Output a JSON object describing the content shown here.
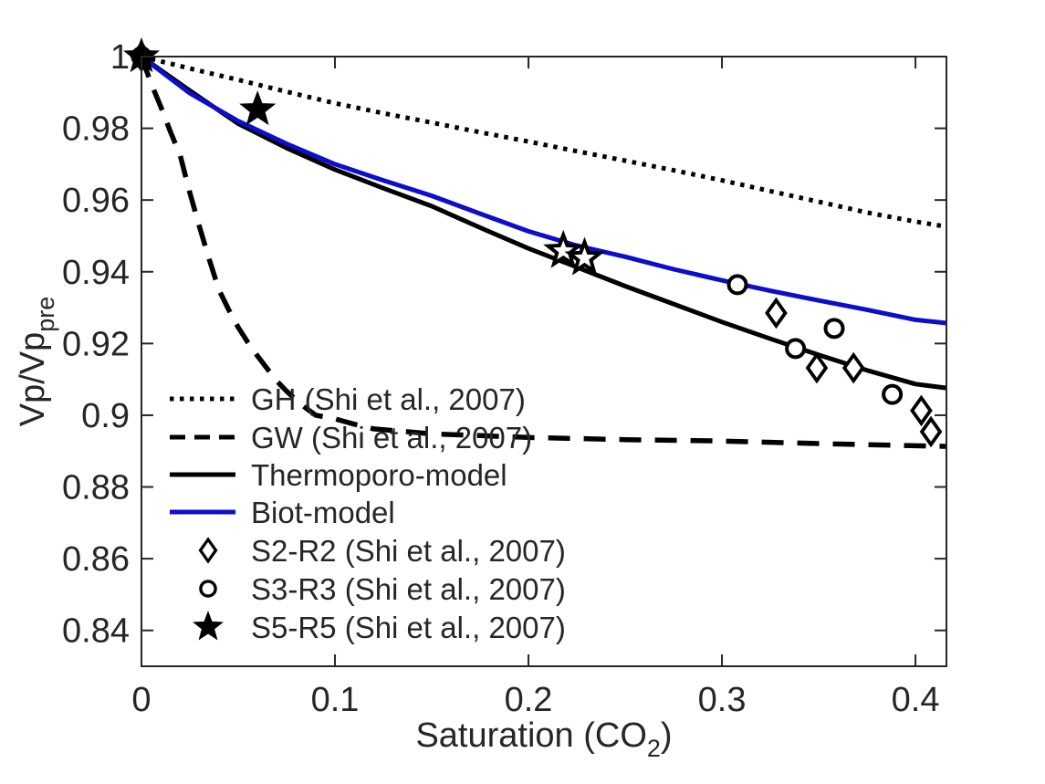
{
  "figure": {
    "background": "#ffffff",
    "axis_color": "#262626",
    "text_color": "#262626",
    "blue": "#0d0dcc",
    "black": "#000000"
  },
  "chart_data": {
    "type": "line",
    "title": "",
    "xlabel_parts": [
      {
        "t": "Saturation (CO",
        "sub": false
      },
      {
        "t": "2",
        "sub": true
      },
      {
        "t": ")",
        "sub": false
      }
    ],
    "ylabel_parts": [
      {
        "t": "Vp/Vp",
        "sub": false
      },
      {
        "t": "pre",
        "sub": true
      }
    ],
    "xlim": [
      0,
      0.416
    ],
    "ylim": [
      0.83,
      1.0
    ],
    "grid": false,
    "legend_position": "lower-left-inside",
    "xticks": [
      {
        "v": 0,
        "label": "0"
      },
      {
        "v": 0.1,
        "label": "0.1"
      },
      {
        "v": 0.2,
        "label": "0.2"
      },
      {
        "v": 0.3,
        "label": "0.3"
      },
      {
        "v": 0.4,
        "label": "0.4"
      }
    ],
    "yticks": [
      {
        "v": 1.0,
        "label": "1"
      },
      {
        "v": 0.98,
        "label": "0.98"
      },
      {
        "v": 0.96,
        "label": "0.96"
      },
      {
        "v": 0.94,
        "label": "0.94"
      },
      {
        "v": 0.92,
        "label": "0.92"
      },
      {
        "v": 0.9,
        "label": "0.9"
      },
      {
        "v": 0.88,
        "label": "0.88"
      },
      {
        "v": 0.86,
        "label": "0.86"
      },
      {
        "v": 0.84,
        "label": "0.84"
      }
    ],
    "series": [
      {
        "name": "GH (Shi et al., 2007)",
        "type": "line",
        "style": "dotted",
        "color": "#000000",
        "points": [
          [
            0,
            1
          ],
          [
            0.025,
            0.9967
          ],
          [
            0.05,
            0.9935
          ],
          [
            0.075,
            0.9902
          ],
          [
            0.1,
            0.987
          ],
          [
            0.125,
            0.9842
          ],
          [
            0.15,
            0.9816
          ],
          [
            0.175,
            0.9789
          ],
          [
            0.2,
            0.9763
          ],
          [
            0.225,
            0.9736
          ],
          [
            0.25,
            0.971
          ],
          [
            0.275,
            0.9683
          ],
          [
            0.3,
            0.9655
          ],
          [
            0.325,
            0.9625
          ],
          [
            0.35,
            0.9595
          ],
          [
            0.375,
            0.9565
          ],
          [
            0.4,
            0.954
          ],
          [
            0.416,
            0.9526
          ]
        ]
      },
      {
        "name": "GW (Shi et al., 2007)",
        "type": "line",
        "style": "dashed",
        "color": "#000000",
        "points": [
          [
            0,
            1
          ],
          [
            0.005,
            0.9925
          ],
          [
            0.01,
            0.986
          ],
          [
            0.015,
            0.979
          ],
          [
            0.02,
            0.9725
          ],
          [
            0.025,
            0.962
          ],
          [
            0.03,
            0.9525
          ],
          [
            0.035,
            0.9435
          ],
          [
            0.04,
            0.935
          ],
          [
            0.045,
            0.9295
          ],
          [
            0.05,
            0.9245
          ],
          [
            0.055,
            0.9203
          ],
          [
            0.06,
            0.9165
          ],
          [
            0.065,
            0.913
          ],
          [
            0.07,
            0.9095
          ],
          [
            0.075,
            0.9067
          ],
          [
            0.08,
            0.9042
          ],
          [
            0.085,
            0.902
          ],
          [
            0.09,
            0.9
          ],
          [
            0.095,
            0.8995
          ],
          [
            0.1,
            0.899
          ],
          [
            0.11,
            0.8975
          ],
          [
            0.12,
            0.8962
          ],
          [
            0.135,
            0.8955
          ],
          [
            0.15,
            0.8948
          ],
          [
            0.175,
            0.8943
          ],
          [
            0.2,
            0.8938
          ],
          [
            0.25,
            0.8932
          ],
          [
            0.3,
            0.8928
          ],
          [
            0.35,
            0.8921
          ],
          [
            0.416,
            0.8913
          ]
        ]
      },
      {
        "name": "Thermoporo-model",
        "type": "line",
        "style": "solid",
        "color": "#000000",
        "points": [
          [
            0,
            1
          ],
          [
            0.025,
            0.9905
          ],
          [
            0.05,
            0.9813
          ],
          [
            0.075,
            0.9745
          ],
          [
            0.1,
            0.9685
          ],
          [
            0.125,
            0.9633
          ],
          [
            0.15,
            0.9583
          ],
          [
            0.175,
            0.9523
          ],
          [
            0.2,
            0.9465
          ],
          [
            0.225,
            0.9413
          ],
          [
            0.25,
            0.936
          ],
          [
            0.275,
            0.931
          ],
          [
            0.3,
            0.926
          ],
          [
            0.325,
            0.9213
          ],
          [
            0.35,
            0.9168
          ],
          [
            0.375,
            0.9125
          ],
          [
            0.4,
            0.9087
          ],
          [
            0.416,
            0.9076
          ]
        ]
      },
      {
        "name": "Biot-model",
        "type": "line",
        "style": "solid",
        "color": "#0d0dcc",
        "points": [
          [
            0,
            1
          ],
          [
            0.025,
            0.9898
          ],
          [
            0.05,
            0.982
          ],
          [
            0.075,
            0.9757
          ],
          [
            0.1,
            0.97
          ],
          [
            0.125,
            0.9655
          ],
          [
            0.15,
            0.9612
          ],
          [
            0.175,
            0.9562
          ],
          [
            0.2,
            0.9513
          ],
          [
            0.225,
            0.9473
          ],
          [
            0.25,
            0.9442
          ],
          [
            0.275,
            0.9407
          ],
          [
            0.3,
            0.9376
          ],
          [
            0.325,
            0.9347
          ],
          [
            0.35,
            0.932
          ],
          [
            0.375,
            0.9294
          ],
          [
            0.4,
            0.9266
          ],
          [
            0.416,
            0.9257
          ]
        ]
      },
      {
        "name": "S2-R2 (Shi et al., 2007)",
        "type": "scatter",
        "marker": "diamond",
        "filled": false,
        "color": "#000000",
        "points": [
          [
            0,
            1
          ],
          [
            0.328,
            0.9285
          ],
          [
            0.349,
            0.9132
          ],
          [
            0.368,
            0.9132
          ],
          [
            0.403,
            0.9013
          ],
          [
            0.408,
            0.8954
          ]
        ]
      },
      {
        "name": "S3-R3 (Shi et al., 2007)",
        "type": "scatter",
        "marker": "circle",
        "filled": false,
        "color": "#000000",
        "points": [
          [
            0,
            1
          ],
          [
            0.308,
            0.9364
          ],
          [
            0.338,
            0.9186
          ],
          [
            0.358,
            0.9242
          ],
          [
            0.388,
            0.9058
          ]
        ]
      },
      {
        "name": "S5-R5 (Shi et al., 2007)",
        "type": "scatter",
        "marker": "star",
        "filled": true,
        "color": "#000000",
        "points": [
          [
            0,
            1
          ],
          [
            0.06,
            0.9852
          ],
          [
            0.218,
            0.9458,
            "open"
          ],
          [
            0.229,
            0.9438,
            "open"
          ]
        ]
      }
    ]
  }
}
